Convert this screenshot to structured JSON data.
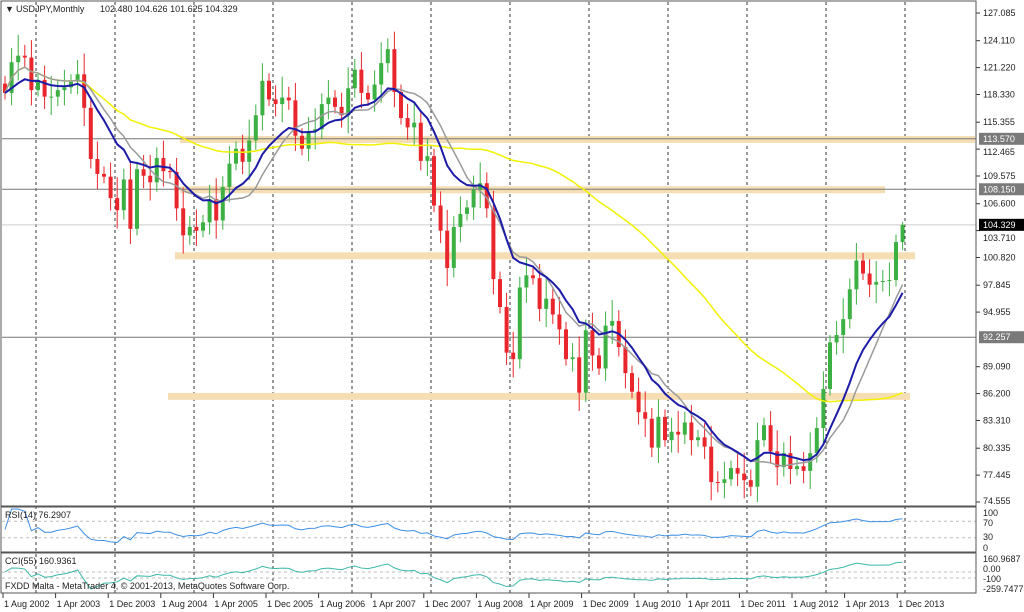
{
  "header": {
    "symbol": "USDJPY,Monthly",
    "ohlc": "102.480 104.626 101.625 104.329"
  },
  "colors": {
    "up": "#3cb043",
    "down": "#e8262b",
    "ma_fast": "#1c1ca8",
    "ma_slow": "#9a9a9a",
    "ma_long": "#f2f200",
    "zone": "#f5deb3",
    "rsi": "#3d8fe8",
    "cci": "#3ab8a8"
  },
  "chart_data": {
    "type": "candlestick",
    "title": "USDJPY,Monthly",
    "ylim": [
      74.555,
      127.085
    ],
    "y_ticks": [
      "127.085",
      "124.110",
      "121.220",
      "118.330",
      "115.355",
      "112.465",
      "109.575",
      "106.600",
      "103.710",
      "100.820",
      "97.845",
      "94.955",
      "89.090",
      "86.200",
      "83.310",
      "80.335",
      "77.445",
      "74.555"
    ],
    "x_labels": [
      "1 Aug 2002",
      "1 Apr 2003",
      "1 Dec 2003",
      "1 Aug 2004",
      "1 Apr 2005",
      "1 Dec 2005",
      "1 Aug 2006",
      "1 Apr 2007",
      "1 Dec 2007",
      "1 Aug 2008",
      "1 Apr 2009",
      "1 Dec 2009",
      "1 Aug 2010",
      "1 Apr 2011",
      "1 Dec 2011",
      "1 Aug 2012",
      "1 Apr 2013",
      "1 Dec 2013"
    ],
    "start": "Aug 2002",
    "closes": [
      118.5,
      121.8,
      122.5,
      122.3,
      118.8,
      119.9,
      118.1,
      118.1,
      118.8,
      119.1,
      119.7,
      120.5,
      116.9,
      111.4,
      109.8,
      109.5,
      107.2,
      105.9,
      109.2,
      103.9,
      110.3,
      109.6,
      108.9,
      111.5,
      110.1,
      110.0,
      106.1,
      103.2,
      104.1,
      103.7,
      104.6,
      107.1,
      104.8,
      108.4,
      110.9,
      112.5,
      111.1,
      113.4,
      116.1,
      119.8,
      117.8,
      117.3,
      118.0,
      117.7,
      113.9,
      112.5,
      114.4,
      114.6,
      117.3,
      118.0,
      117.0,
      116.1,
      119.0,
      121.0,
      118.5,
      117.8,
      119.4,
      121.7,
      123.2,
      118.6,
      115.8,
      114.8,
      115.3,
      111.2,
      111.7,
      106.4,
      103.7,
      99.7,
      104.1,
      105.5,
      106.2,
      108.1,
      108.8,
      106.1,
      98.5,
      95.5,
      90.6,
      89.9,
      97.6,
      98.9,
      98.6,
      95.3,
      96.4,
      94.7,
      93.1,
      89.9,
      90.1,
      86.3,
      93.0,
      90.3,
      88.9,
      93.5,
      94.0,
      91.2,
      88.4,
      86.4,
      84.2,
      83.5,
      80.4,
      83.7,
      81.2,
      82.1,
      81.8,
      83.1,
      81.2,
      81.5,
      80.5,
      76.7,
      76.6,
      77.0,
      78.2,
      77.6,
      76.9,
      76.2,
      81.2,
      82.8,
      80.0,
      78.3,
      79.8,
      78.1,
      78.4,
      77.9,
      79.8,
      82.5,
      86.7,
      91.7,
      92.5,
      94.2,
      97.4,
      100.5,
      99.1,
      97.9,
      98.2,
      98.3,
      98.4,
      102.48,
      104.329
    ],
    "last_candle": {
      "open": 102.48,
      "high": 104.626,
      "low": 101.625,
      "close": 104.329
    },
    "levels": [
      {
        "price": 113.57,
        "label": "113.570"
      },
      {
        "price": 108.15,
        "label": "108.150"
      },
      {
        "price": 92.257,
        "label": "92.257"
      }
    ],
    "current_price": "104.329",
    "zones": [
      113.5,
      108.1,
      101.0,
      85.9
    ],
    "moving_averages": [
      {
        "type": "EMA",
        "period": 12
      },
      {
        "type": "SMA",
        "period": 12
      },
      {
        "type": "SMA",
        "period": 50
      }
    ],
    "rsi": {
      "label": "RSI(14) 76.2907",
      "levels": [
        "100",
        "70",
        "30",
        "0"
      ],
      "period": 14
    },
    "cci": {
      "label": "CCI(55) 160.9361",
      "levels": [
        "160.9687",
        "0.00",
        "-100",
        "-259.7477"
      ],
      "period": 55
    }
  },
  "footer": {
    "copyright": "FXDD Malta - MetaTrader 4, © 2001-2013, MetaQuotes Software Corp."
  }
}
